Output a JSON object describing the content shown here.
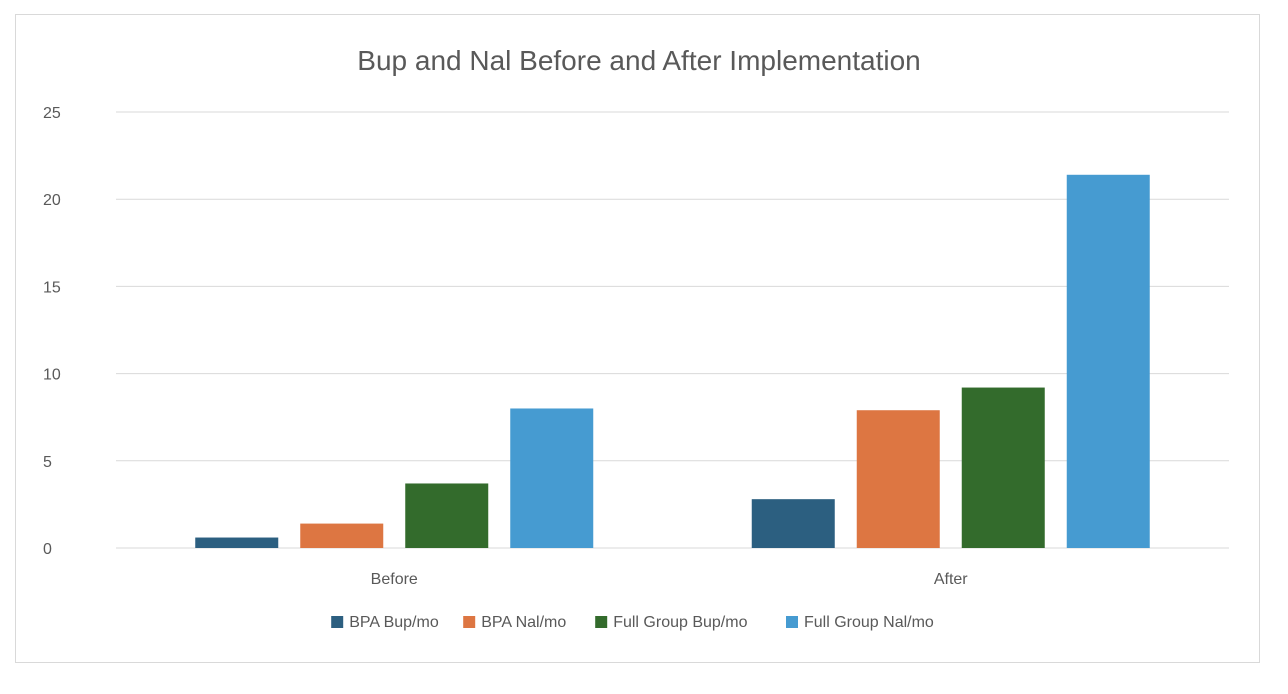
{
  "chart_data": {
    "type": "bar",
    "title": "Bup and Nal Before and After Implementation",
    "xlabel": "",
    "ylabel": "",
    "categories": [
      "Before",
      "After"
    ],
    "series": [
      {
        "name": "BPA Bup/mo",
        "values": [
          0.6,
          2.8
        ],
        "color": "#2c5f80"
      },
      {
        "name": "BPA Nal/mo",
        "values": [
          1.4,
          7.9
        ],
        "color": "#dd7642"
      },
      {
        "name": "Full Group Bup/mo",
        "values": [
          3.7,
          9.2
        ],
        "color": "#336b2c"
      },
      {
        "name": "Full Group Nal/mo",
        "values": [
          8.0,
          21.4
        ],
        "color": "#469bd1"
      }
    ],
    "ylim": [
      0,
      25
    ],
    "yticks": [
      "0",
      "5",
      "10",
      "15",
      "20",
      "25"
    ],
    "grid": true,
    "legend_position": "bottom"
  }
}
